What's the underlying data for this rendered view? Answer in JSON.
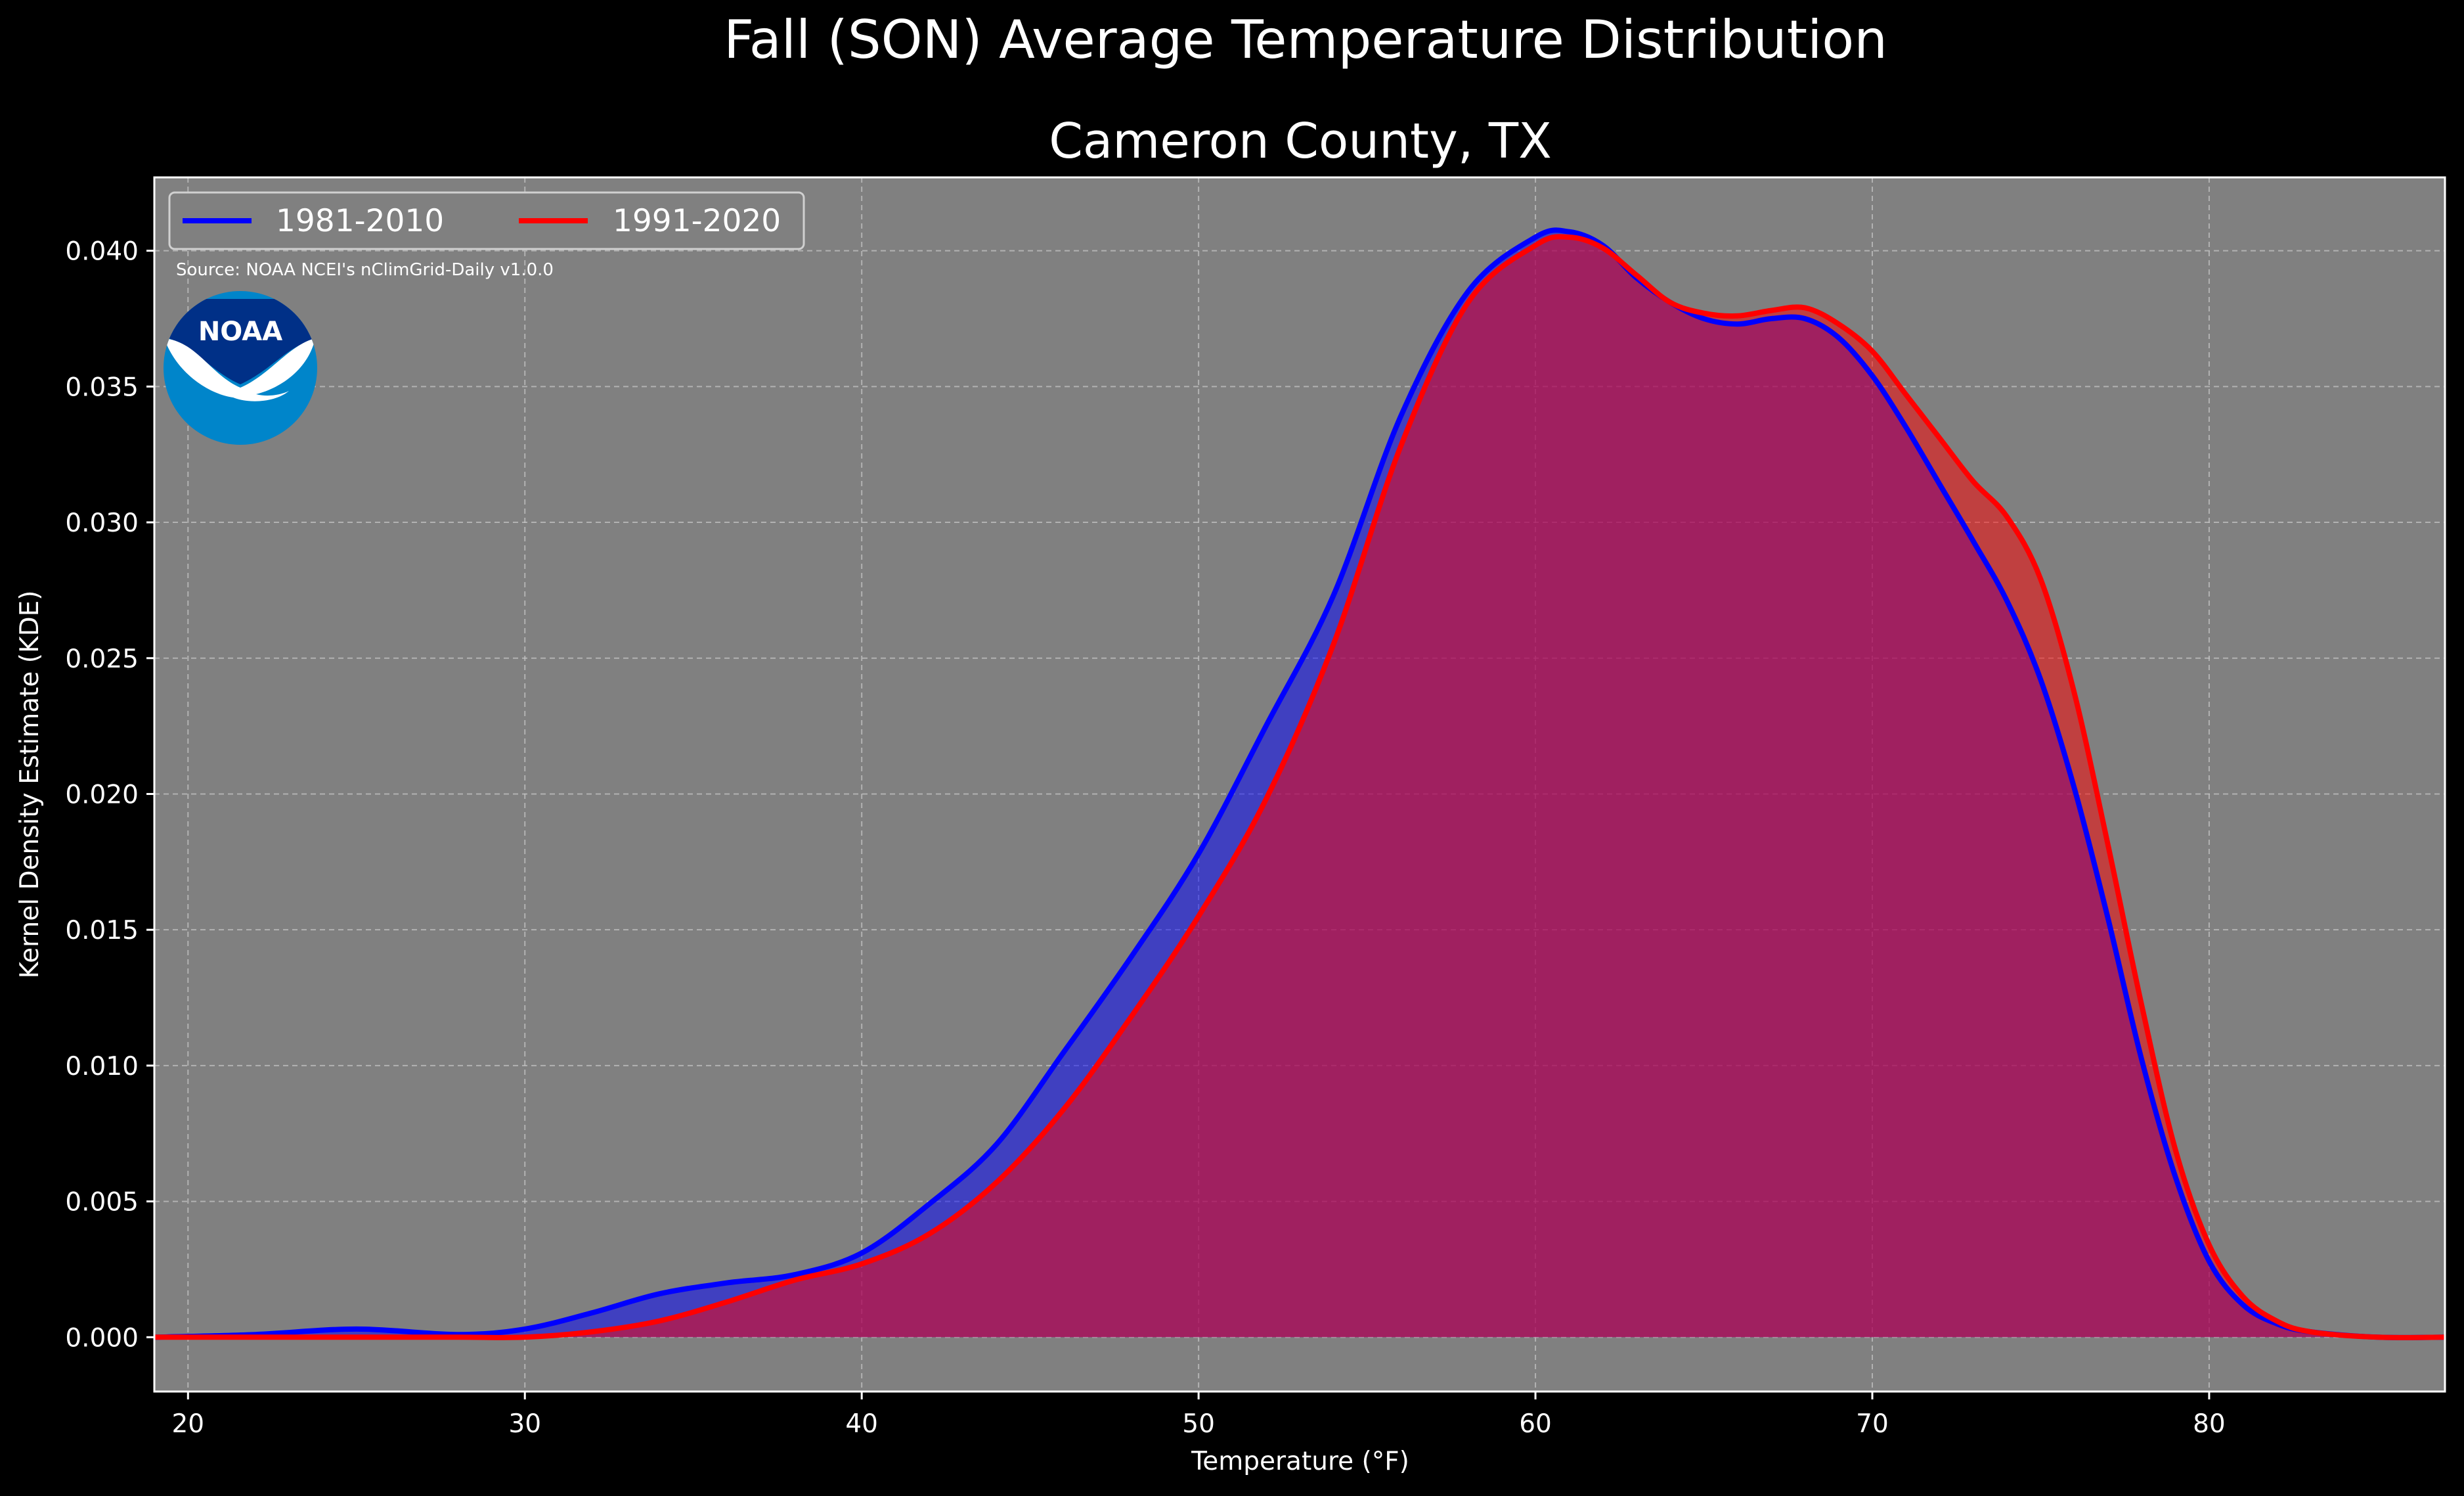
{
  "chart_data": {
    "type": "area",
    "title": "Fall (SON) Average Temperature Distribution",
    "subtitle": "Cameron County, TX",
    "xlabel": "Temperature (°F)",
    "ylabel": "Kernel Density Estimate (KDE)",
    "xlim": [
      19,
      87
    ],
    "ylim": [
      -0.002,
      0.0427
    ],
    "xticks": [
      20,
      30,
      40,
      50,
      60,
      70,
      80
    ],
    "yticks": [
      0.0,
      0.005,
      0.01,
      0.015,
      0.02,
      0.025,
      0.03,
      0.035,
      0.04
    ],
    "ytick_labels": [
      "0.000",
      "0.005",
      "0.010",
      "0.015",
      "0.020",
      "0.025",
      "0.030",
      "0.035",
      "0.040"
    ],
    "xtick_labels": [
      "20",
      "30",
      "40",
      "50",
      "60",
      "70",
      "80"
    ],
    "grid": true,
    "legend_position": "top-left",
    "background_color": "#808080",
    "source": "Source: NOAA NCEI's nClimGrid-Daily v1.0.0",
    "logo_text": "NOAA",
    "series": [
      {
        "name": "1981-2010",
        "color": "#0000ff",
        "fill_color": "#0000ff",
        "x": [
          19,
          22,
          25,
          28,
          30,
          32,
          34,
          36,
          38,
          40,
          42,
          44,
          46,
          48,
          50,
          52,
          54,
          56,
          58,
          60,
          61,
          62,
          63,
          64,
          65,
          66,
          67,
          68,
          69,
          70,
          71,
          72,
          73,
          74,
          75,
          76,
          77,
          78,
          79,
          80,
          81,
          82,
          83,
          85,
          87
        ],
        "y": [
          0.0,
          0.0001,
          0.0003,
          0.0001,
          0.0003,
          0.0009,
          0.0016,
          0.002,
          0.0023,
          0.0031,
          0.0049,
          0.0071,
          0.0105,
          0.014,
          0.0178,
          0.0225,
          0.0273,
          0.0339,
          0.0385,
          0.0405,
          0.0407,
          0.0402,
          0.039,
          0.0381,
          0.0375,
          0.0373,
          0.0375,
          0.0375,
          0.0368,
          0.0354,
          0.0335,
          0.0314,
          0.0293,
          0.0271,
          0.0242,
          0.0202,
          0.0154,
          0.0102,
          0.0059,
          0.0028,
          0.0012,
          0.0005,
          0.0002,
          0.0,
          0.0
        ]
      },
      {
        "name": "1991-2020",
        "color": "#ff0000",
        "fill_color": "#ff0000",
        "x": [
          19,
          22,
          25,
          28,
          30,
          32,
          34,
          36,
          38,
          40,
          42,
          44,
          46,
          48,
          50,
          52,
          54,
          56,
          58,
          60,
          61,
          62,
          63,
          64,
          65,
          66,
          67,
          68,
          69,
          70,
          71,
          72,
          73,
          74,
          75,
          76,
          77,
          78,
          79,
          80,
          81,
          82,
          83,
          85,
          87
        ],
        "y": [
          0.0,
          0.0,
          0.0,
          0.0,
          0.0,
          0.0002,
          0.0006,
          0.0013,
          0.0021,
          0.0027,
          0.0038,
          0.0057,
          0.0084,
          0.0118,
          0.0155,
          0.0198,
          0.0255,
          0.0328,
          0.0381,
          0.0402,
          0.0405,
          0.0401,
          0.0391,
          0.0381,
          0.0377,
          0.0376,
          0.0378,
          0.0379,
          0.0373,
          0.0363,
          0.0347,
          0.0331,
          0.0315,
          0.0302,
          0.0279,
          0.0237,
          0.0181,
          0.0122,
          0.0069,
          0.0034,
          0.0015,
          0.0006,
          0.0002,
          0.0,
          0.0
        ]
      }
    ]
  }
}
